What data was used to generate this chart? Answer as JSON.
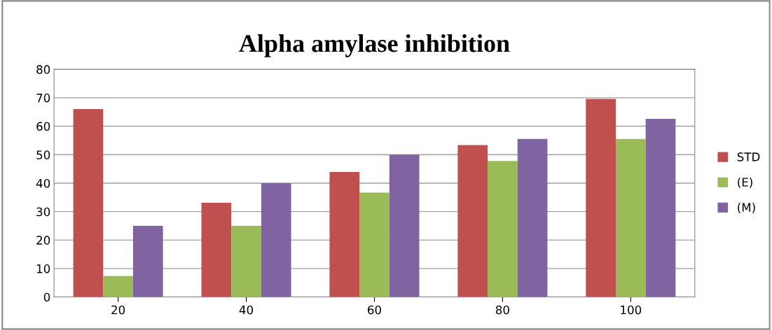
{
  "chart_data": {
    "type": "bar",
    "title": "Alpha amylase inhibition",
    "categories": [
      "20",
      "40",
      "60",
      "80",
      "100"
    ],
    "series": [
      {
        "name": "STD",
        "color": "#c0504d",
        "values": [
          66.0,
          33.1,
          43.9,
          53.4,
          69.6
        ]
      },
      {
        "name": "(E)",
        "color": "#9bbb59",
        "values": [
          7.4,
          25.0,
          36.7,
          47.8,
          55.5
        ]
      },
      {
        "name": "(M)",
        "color": "#8064a2",
        "values": [
          25.0,
          40.0,
          50.0,
          55.5,
          62.6
        ]
      }
    ],
    "ylim": [
      0,
      80
    ],
    "yticks": [
      0,
      10,
      20,
      30,
      40,
      50,
      60,
      70,
      80
    ],
    "grid": "y",
    "legend": "right"
  }
}
